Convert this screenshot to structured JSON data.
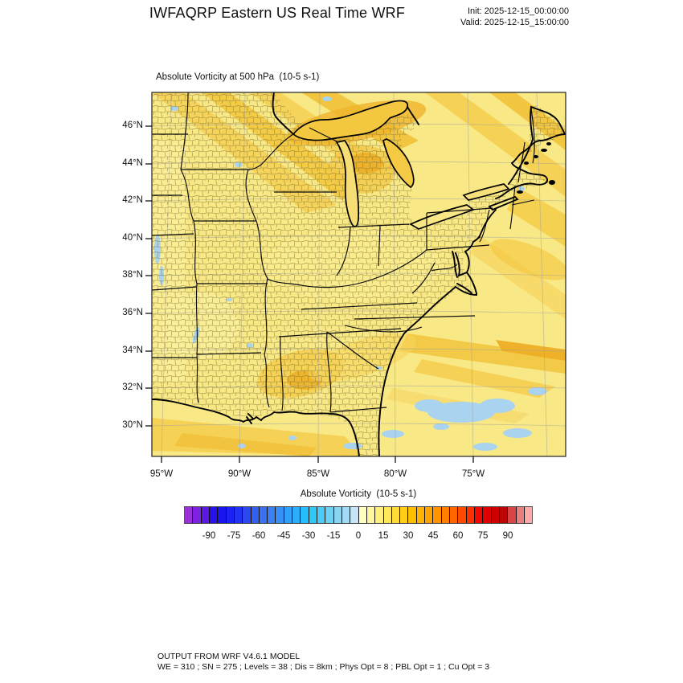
{
  "header": {
    "title": "IWFAQRP Eastern US Real Time WRF",
    "init": "Init: 2025-12-15_00:00:00",
    "valid": "Valid: 2025-12-15_15:00:00"
  },
  "map": {
    "title": "Absolute Vorticity at 500 hPa  (10-5 s-1)",
    "lat_labels": [
      "46°N",
      "44°N",
      "42°N",
      "40°N",
      "38°N",
      "36°N",
      "34°N",
      "32°N",
      "30°N"
    ],
    "lon_labels": [
      "95°W",
      "90°W",
      "85°W",
      "80°W",
      "75°W"
    ]
  },
  "colorbar": {
    "title": "Absolute Vorticity  (10-5 s-1)",
    "tick_labels": [
      "-90",
      "-75",
      "-60",
      "-45",
      "-30",
      "-15",
      "0",
      "15",
      "30",
      "45",
      "60",
      "75",
      "90"
    ],
    "colors": [
      "#9B30D9",
      "#7C22E0",
      "#5D18E8",
      "#2B10EE",
      "#1A14F0",
      "#1B22F2",
      "#2233F2",
      "#2C49F0",
      "#3360F0",
      "#3971F0",
      "#3A80F2",
      "#3790F5",
      "#31A0F8",
      "#2BAFFA",
      "#25BDFB",
      "#2FC8FA",
      "#4DCDF6",
      "#6DD1F2",
      "#89D5F0",
      "#A3DCF2",
      "#C6E5F5",
      "#FFFFC2",
      "#FFF8A0",
      "#FFF07C",
      "#FFE75A",
      "#FFDB38",
      "#FFCE16",
      "#FBBF00",
      "#FFB200",
      "#FFA300",
      "#FF9300",
      "#FF8000",
      "#FF6600",
      "#FF4A00",
      "#FF3000",
      "#F20800",
      "#E00000",
      "#CC0000",
      "#BC0606",
      "#D94444",
      "#E88080",
      "#FFAAAA"
    ]
  },
  "footer": {
    "line1": "OUTPUT FROM WRF V4.6.1 MODEL",
    "line2": "WE = 310 ; SN = 275 ; Levels = 38 ; Dis = 8km ; Phys Opt = 8 ; PBL Opt = 1 ; Cu Opt = 3"
  },
  "chart_data": {
    "type": "heatmap",
    "title": "Absolute Vorticity at 500 hPa  (10-5 s-1)",
    "model_run": {
      "init": "2025-12-15_00:00:00",
      "valid": "2025-12-15_15:00:00",
      "model": "WRF V4.6.1",
      "domain": "Eastern US"
    },
    "x_axis": {
      "label": "longitude",
      "tick_labels": [
        "95°W",
        "90°W",
        "85°W",
        "80°W",
        "75°W"
      ]
    },
    "y_axis": {
      "label": "latitude",
      "tick_labels": [
        "46°N",
        "44°N",
        "42°N",
        "40°N",
        "38°N",
        "36°N",
        "34°N",
        "32°N",
        "30°N"
      ]
    },
    "colorbar": {
      "label": "Absolute Vorticity  (10-5 s-1)",
      "ticks": [
        -90,
        -75,
        -60,
        -45,
        -30,
        -15,
        0,
        15,
        30,
        45,
        60,
        75,
        90
      ],
      "range": [
        -105,
        105
      ],
      "cell_width_units": 5,
      "n_cells": 42
    },
    "field_summary": "Absolute vorticity field is weakly positive (~5-20 x 10-5 s-1, pale yellow) over most of the eastern US, with gold/orange streak maxima (~25-40) in NW-SE bands over Minnesota/Wisconsin/Upper Michigan, over southern Ontario/Quebec and New England, over central Alabama/Georgia, along the Gulf coast, and in offshore Atlantic bands; scattered slightly negative patches (~-5, light blue) appear off the Southeast coast and in small flecks along the western plains and Mississippi valley.",
    "overlays": [
      "US county boundaries",
      "state boundaries",
      "coastlines and Great Lakes",
      "lat/lon graticule"
    ]
  }
}
